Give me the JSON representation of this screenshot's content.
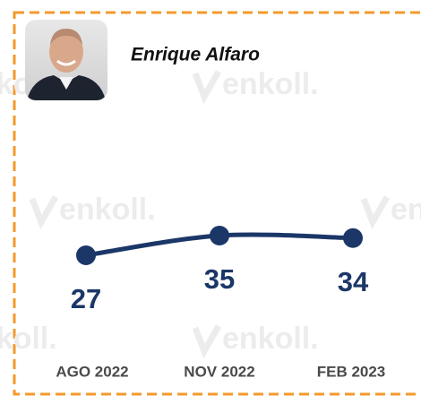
{
  "chart_data": {
    "type": "line",
    "title": "Enrique Alfaro",
    "watermark": "enkoll.",
    "categories": [
      "AGO 2022",
      "NOV 2022",
      "FEB 2023"
    ],
    "values": [
      27,
      35,
      34
    ],
    "color": "#1b3768",
    "border_color": "#f39a2b"
  }
}
